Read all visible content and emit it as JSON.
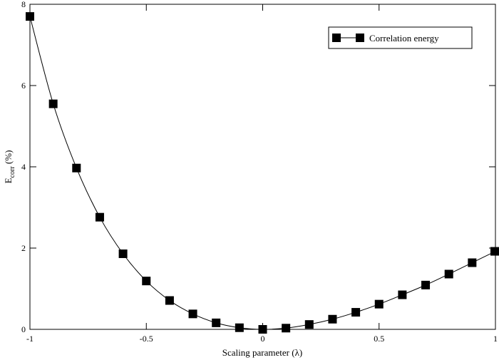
{
  "chart_data": {
    "type": "line",
    "title": "",
    "xlabel": "Scaling parameter (λ)",
    "ylabel": {
      "main": "E",
      "subscript": "corr",
      "suffix": " (%)"
    },
    "xlim": [
      -1,
      1
    ],
    "ylim": [
      0,
      8
    ],
    "xticks": [
      -1,
      -0.5,
      0,
      0.5,
      1
    ],
    "yticks": [
      0,
      2,
      4,
      6,
      8
    ],
    "grid": false,
    "legend_position": "top-right",
    "marker": "square",
    "colors": {
      "series": "#000000",
      "axis": "#000000",
      "background": "#ffffff"
    },
    "series": [
      {
        "name": "Correlation energy",
        "x": [
          -1.0,
          -0.9,
          -0.8,
          -0.7,
          -0.6,
          -0.5,
          -0.4,
          -0.3,
          -0.2,
          -0.1,
          0.0,
          0.1,
          0.2,
          0.3,
          0.4,
          0.5,
          0.6,
          0.7,
          0.8,
          0.9,
          1.0
        ],
        "y": [
          7.7,
          5.55,
          3.97,
          2.76,
          1.86,
          1.19,
          0.71,
          0.38,
          0.16,
          0.04,
          0.0,
          0.03,
          0.12,
          0.25,
          0.42,
          0.62,
          0.85,
          1.09,
          1.36,
          1.64,
          1.92
        ]
      }
    ]
  }
}
